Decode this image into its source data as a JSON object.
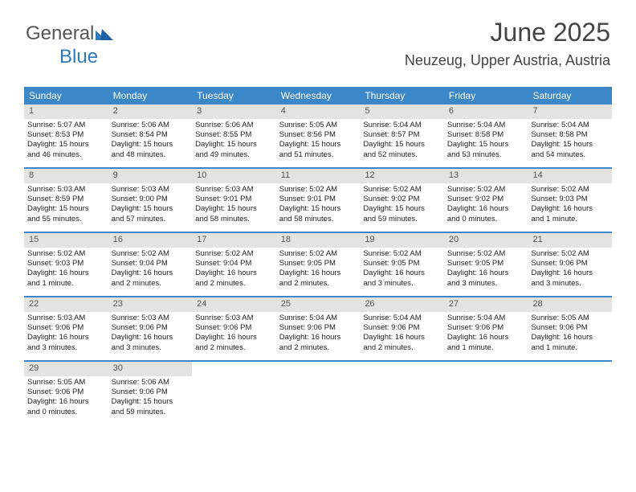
{
  "logo": {
    "part1": "General",
    "part2": "Blue"
  },
  "title": "June 2025",
  "location": "Neuzeug, Upper Austria, Austria",
  "colors": {
    "header_bg": "#3b87c8",
    "header_text": "#ffffff",
    "daynum_bg": "#e3e3e3",
    "week_border": "#3b87c8",
    "text": "#222222",
    "logo_general": "#555555",
    "logo_blue": "#2f7abf"
  },
  "fonts": {
    "title_size_pt": 24,
    "location_size_pt": 14,
    "dow_size_pt": 9,
    "body_size_pt": 7
  },
  "dow": [
    "Sunday",
    "Monday",
    "Tuesday",
    "Wednesday",
    "Thursday",
    "Friday",
    "Saturday"
  ],
  "weeks": [
    [
      {
        "n": "1",
        "sr": "Sunrise: 5:07 AM",
        "ss": "Sunset: 8:53 PM",
        "d1": "Daylight: 15 hours",
        "d2": "and 46 minutes."
      },
      {
        "n": "2",
        "sr": "Sunrise: 5:06 AM",
        "ss": "Sunset: 8:54 PM",
        "d1": "Daylight: 15 hours",
        "d2": "and 48 minutes."
      },
      {
        "n": "3",
        "sr": "Sunrise: 5:06 AM",
        "ss": "Sunset: 8:55 PM",
        "d1": "Daylight: 15 hours",
        "d2": "and 49 minutes."
      },
      {
        "n": "4",
        "sr": "Sunrise: 5:05 AM",
        "ss": "Sunset: 8:56 PM",
        "d1": "Daylight: 15 hours",
        "d2": "and 51 minutes."
      },
      {
        "n": "5",
        "sr": "Sunrise: 5:04 AM",
        "ss": "Sunset: 8:57 PM",
        "d1": "Daylight: 15 hours",
        "d2": "and 52 minutes."
      },
      {
        "n": "6",
        "sr": "Sunrise: 5:04 AM",
        "ss": "Sunset: 8:58 PM",
        "d1": "Daylight: 15 hours",
        "d2": "and 53 minutes."
      },
      {
        "n": "7",
        "sr": "Sunrise: 5:04 AM",
        "ss": "Sunset: 8:58 PM",
        "d1": "Daylight: 15 hours",
        "d2": "and 54 minutes."
      }
    ],
    [
      {
        "n": "8",
        "sr": "Sunrise: 5:03 AM",
        "ss": "Sunset: 8:59 PM",
        "d1": "Daylight: 15 hours",
        "d2": "and 55 minutes."
      },
      {
        "n": "9",
        "sr": "Sunrise: 5:03 AM",
        "ss": "Sunset: 9:00 PM",
        "d1": "Daylight: 15 hours",
        "d2": "and 57 minutes."
      },
      {
        "n": "10",
        "sr": "Sunrise: 5:03 AM",
        "ss": "Sunset: 9:01 PM",
        "d1": "Daylight: 15 hours",
        "d2": "and 58 minutes."
      },
      {
        "n": "11",
        "sr": "Sunrise: 5:02 AM",
        "ss": "Sunset: 9:01 PM",
        "d1": "Daylight: 15 hours",
        "d2": "and 58 minutes."
      },
      {
        "n": "12",
        "sr": "Sunrise: 5:02 AM",
        "ss": "Sunset: 9:02 PM",
        "d1": "Daylight: 15 hours",
        "d2": "and 59 minutes."
      },
      {
        "n": "13",
        "sr": "Sunrise: 5:02 AM",
        "ss": "Sunset: 9:02 PM",
        "d1": "Daylight: 16 hours",
        "d2": "and 0 minutes."
      },
      {
        "n": "14",
        "sr": "Sunrise: 5:02 AM",
        "ss": "Sunset: 9:03 PM",
        "d1": "Daylight: 16 hours",
        "d2": "and 1 minute."
      }
    ],
    [
      {
        "n": "15",
        "sr": "Sunrise: 5:02 AM",
        "ss": "Sunset: 9:03 PM",
        "d1": "Daylight: 16 hours",
        "d2": "and 1 minute."
      },
      {
        "n": "16",
        "sr": "Sunrise: 5:02 AM",
        "ss": "Sunset: 9:04 PM",
        "d1": "Daylight: 16 hours",
        "d2": "and 2 minutes."
      },
      {
        "n": "17",
        "sr": "Sunrise: 5:02 AM",
        "ss": "Sunset: 9:04 PM",
        "d1": "Daylight: 16 hours",
        "d2": "and 2 minutes."
      },
      {
        "n": "18",
        "sr": "Sunrise: 5:02 AM",
        "ss": "Sunset: 9:05 PM",
        "d1": "Daylight: 16 hours",
        "d2": "and 2 minutes."
      },
      {
        "n": "19",
        "sr": "Sunrise: 5:02 AM",
        "ss": "Sunset: 9:05 PM",
        "d1": "Daylight: 16 hours",
        "d2": "and 3 minutes."
      },
      {
        "n": "20",
        "sr": "Sunrise: 5:02 AM",
        "ss": "Sunset: 9:05 PM",
        "d1": "Daylight: 16 hours",
        "d2": "and 3 minutes."
      },
      {
        "n": "21",
        "sr": "Sunrise: 5:02 AM",
        "ss": "Sunset: 9:06 PM",
        "d1": "Daylight: 16 hours",
        "d2": "and 3 minutes."
      }
    ],
    [
      {
        "n": "22",
        "sr": "Sunrise: 5:03 AM",
        "ss": "Sunset: 9:06 PM",
        "d1": "Daylight: 16 hours",
        "d2": "and 3 minutes."
      },
      {
        "n": "23",
        "sr": "Sunrise: 5:03 AM",
        "ss": "Sunset: 9:06 PM",
        "d1": "Daylight: 16 hours",
        "d2": "and 3 minutes."
      },
      {
        "n": "24",
        "sr": "Sunrise: 5:03 AM",
        "ss": "Sunset: 9:06 PM",
        "d1": "Daylight: 16 hours",
        "d2": "and 2 minutes."
      },
      {
        "n": "25",
        "sr": "Sunrise: 5:04 AM",
        "ss": "Sunset: 9:06 PM",
        "d1": "Daylight: 16 hours",
        "d2": "and 2 minutes."
      },
      {
        "n": "26",
        "sr": "Sunrise: 5:04 AM",
        "ss": "Sunset: 9:06 PM",
        "d1": "Daylight: 16 hours",
        "d2": "and 2 minutes."
      },
      {
        "n": "27",
        "sr": "Sunrise: 5:04 AM",
        "ss": "Sunset: 9:06 PM",
        "d1": "Daylight: 16 hours",
        "d2": "and 1 minute."
      },
      {
        "n": "28",
        "sr": "Sunrise: 5:05 AM",
        "ss": "Sunset: 9:06 PM",
        "d1": "Daylight: 16 hours",
        "d2": "and 1 minute."
      }
    ],
    [
      {
        "n": "29",
        "sr": "Sunrise: 5:05 AM",
        "ss": "Sunset: 9:06 PM",
        "d1": "Daylight: 16 hours",
        "d2": "and 0 minutes."
      },
      {
        "n": "30",
        "sr": "Sunrise: 5:06 AM",
        "ss": "Sunset: 9:06 PM",
        "d1": "Daylight: 15 hours",
        "d2": "and 59 minutes."
      },
      null,
      null,
      null,
      null,
      null
    ]
  ]
}
